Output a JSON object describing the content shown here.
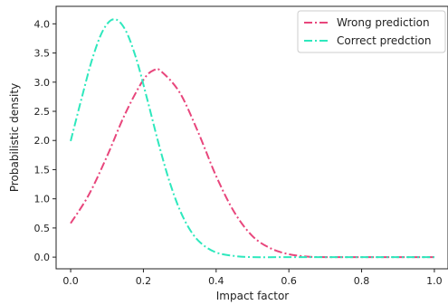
{
  "chart_data": {
    "type": "line",
    "title": "",
    "xlabel": "Impact factor",
    "ylabel": "Probabilistic density",
    "xlim": [
      -0.04,
      1.04
    ],
    "ylim": [
      -0.2,
      4.3
    ],
    "xticks": [
      0.0,
      0.2,
      0.4,
      0.6,
      0.8,
      1.0
    ],
    "xtick_labels": [
      "0.0",
      "0.2",
      "0.4",
      "0.6",
      "0.8",
      "1.0"
    ],
    "yticks": [
      0.0,
      0.5,
      1.0,
      1.5,
      2.0,
      2.5,
      3.0,
      3.5,
      4.0
    ],
    "ytick_labels": [
      "0.0",
      "0.5",
      "1.0",
      "1.5",
      "2.0",
      "2.5",
      "3.0",
      "3.5",
      "4.0"
    ],
    "grid": false,
    "legend_position": "top-right",
    "line_style": "dash-dot",
    "series": [
      {
        "name": "Wrong prediction",
        "color": "#e8467c",
        "x": [
          0.0,
          0.05,
          0.1,
          0.15,
          0.2,
          0.23,
          0.25,
          0.3,
          0.35,
          0.4,
          0.45,
          0.5,
          0.55,
          0.6,
          0.65,
          0.7,
          0.8,
          0.9,
          1.0
        ],
        "y": [
          0.58,
          1.07,
          1.73,
          2.46,
          3.04,
          3.21,
          3.18,
          2.82,
          2.15,
          1.39,
          0.77,
          0.36,
          0.15,
          0.05,
          0.01,
          0.0,
          0.0,
          0.0,
          0.0
        ]
      },
      {
        "name": "Correct predction",
        "color": "#2ee8bd",
        "x": [
          0.0,
          0.03,
          0.06,
          0.09,
          0.12,
          0.15,
          0.18,
          0.21,
          0.24,
          0.27,
          0.3,
          0.33,
          0.36,
          0.4,
          0.45,
          0.5,
          0.6,
          0.7,
          0.8,
          0.9,
          1.0
        ],
        "y": [
          1.99,
          2.72,
          3.41,
          3.9,
          4.08,
          3.9,
          3.41,
          2.72,
          1.99,
          1.33,
          0.81,
          0.45,
          0.23,
          0.08,
          0.02,
          0.0,
          0.0,
          0.0,
          0.0,
          0.0,
          0.0
        ]
      }
    ]
  }
}
